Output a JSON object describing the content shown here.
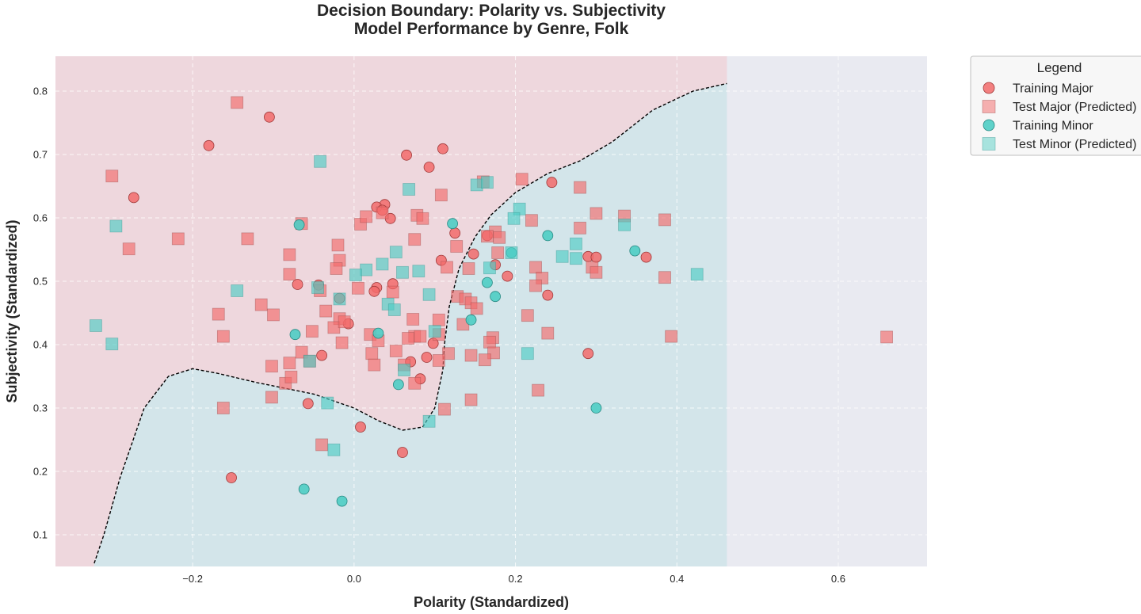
{
  "chart_data": {
    "type": "scatter",
    "title": "Decision Boundary: Polarity vs. Subjectivity",
    "subtitle": "Model Performance by Genre, Folk",
    "xlabel": "Polarity (Standardized)",
    "ylabel": "Subjectivity (Standardized)",
    "xlim": [
      -0.37,
      0.71
    ],
    "ylim": [
      0.05,
      0.855
    ],
    "xticks": [
      -0.2,
      0.0,
      0.2,
      0.4,
      0.6
    ],
    "xtick_labels": [
      "−0.2",
      "0.0",
      "0.2",
      "0.4",
      "0.6"
    ],
    "yticks": [
      0.1,
      0.2,
      0.3,
      0.4,
      0.5,
      0.6,
      0.7,
      0.8
    ],
    "ytick_labels": [
      "0.1",
      "0.2",
      "0.3",
      "0.4",
      "0.5",
      "0.6",
      "0.7",
      "0.8"
    ],
    "grid": true,
    "legend": {
      "title": "Legend",
      "placement": "outside upper right",
      "items": [
        {
          "label": "Training Major",
          "marker": "circle",
          "color": "#f26b6b"
        },
        {
          "label": "Test Major (Predicted)",
          "marker": "square",
          "color": "#f58888"
        },
        {
          "label": "Training Minor",
          "marker": "circle",
          "color": "#4ecdc4"
        },
        {
          "label": "Test Minor (Predicted)",
          "marker": "square",
          "color": "#7dd8d1"
        }
      ]
    },
    "colors": {
      "major_region": "#eed7dd",
      "minor_region": "#d3e5ea",
      "background": "#e9eaf1",
      "boundary": "#000000",
      "major": "#f26b6b",
      "minor": "#4ecdc4"
    },
    "region_x_max": 0.462,
    "decision_boundary": [
      [
        -0.322,
        0.055
      ],
      [
        -0.31,
        0.1
      ],
      [
        -0.29,
        0.19
      ],
      [
        -0.26,
        0.3
      ],
      [
        -0.23,
        0.35
      ],
      [
        -0.2,
        0.362
      ],
      [
        -0.17,
        0.355
      ],
      [
        -0.12,
        0.34
      ],
      [
        -0.05,
        0.322
      ],
      [
        0.0,
        0.3
      ],
      [
        0.03,
        0.28
      ],
      [
        0.06,
        0.265
      ],
      [
        0.085,
        0.27
      ],
      [
        0.1,
        0.3
      ],
      [
        0.11,
        0.36
      ],
      [
        0.112,
        0.4
      ],
      [
        0.118,
        0.46
      ],
      [
        0.13,
        0.52
      ],
      [
        0.15,
        0.57
      ],
      [
        0.17,
        0.605
      ],
      [
        0.2,
        0.64
      ],
      [
        0.24,
        0.67
      ],
      [
        0.28,
        0.69
      ],
      [
        0.32,
        0.72
      ],
      [
        0.37,
        0.77
      ],
      [
        0.42,
        0.8
      ],
      [
        0.462,
        0.812
      ]
    ],
    "series": [
      {
        "name": "Training Major",
        "marker": "circle",
        "points": [
          [
            -0.105,
            0.759
          ],
          [
            -0.18,
            0.714
          ],
          [
            -0.273,
            0.632
          ],
          [
            0.065,
            0.699
          ],
          [
            0.11,
            0.709
          ],
          [
            0.093,
            0.68
          ],
          [
            0.245,
            0.656
          ],
          [
            0.038,
            0.621
          ],
          [
            0.028,
            0.617
          ],
          [
            0.045,
            0.599
          ],
          [
            0.035,
            0.612
          ],
          [
            0.125,
            0.576
          ],
          [
            0.148,
            0.543
          ],
          [
            0.108,
            0.533
          ],
          [
            0.175,
            0.526
          ],
          [
            0.29,
            0.539
          ],
          [
            0.362,
            0.538
          ],
          [
            0.19,
            0.508
          ],
          [
            -0.07,
            0.495
          ],
          [
            -0.044,
            0.494
          ],
          [
            0.048,
            0.496
          ],
          [
            0.028,
            0.49
          ],
          [
            0.025,
            0.484
          ],
          [
            0.24,
            0.478
          ],
          [
            -0.018,
            0.473
          ],
          [
            -0.007,
            0.433
          ],
          [
            0.098,
            0.402
          ],
          [
            -0.04,
            0.383
          ],
          [
            0.07,
            0.373
          ],
          [
            0.09,
            0.38
          ],
          [
            0.29,
            0.386
          ],
          [
            -0.057,
            0.307
          ],
          [
            0.082,
            0.346
          ],
          [
            0.008,
            0.27
          ],
          [
            0.06,
            0.23
          ],
          [
            -0.152,
            0.19
          ],
          [
            0.165,
            0.572
          ],
          [
            0.3,
            0.538
          ]
        ]
      },
      {
        "name": "Test Major (Predicted)",
        "marker": "square",
        "points": [
          [
            -0.145,
            0.782
          ],
          [
            -0.3,
            0.666
          ],
          [
            -0.279,
            0.551
          ],
          [
            -0.218,
            0.567
          ],
          [
            -0.132,
            0.567
          ],
          [
            -0.065,
            0.591
          ],
          [
            0.008,
            0.59
          ],
          [
            0.015,
            0.602
          ],
          [
            0.035,
            0.608
          ],
          [
            0.078,
            0.604
          ],
          [
            0.085,
            0.599
          ],
          [
            0.108,
            0.636
          ],
          [
            0.16,
            0.657
          ],
          [
            0.208,
            0.661
          ],
          [
            0.28,
            0.648
          ],
          [
            0.3,
            0.607
          ],
          [
            0.335,
            0.603
          ],
          [
            0.385,
            0.597
          ],
          [
            0.22,
            0.596
          ],
          [
            0.175,
            0.578
          ],
          [
            0.18,
            0.569
          ],
          [
            0.165,
            0.571
          ],
          [
            0.075,
            0.566
          ],
          [
            0.127,
            0.555
          ],
          [
            0.28,
            0.584
          ],
          [
            -0.08,
            0.542
          ],
          [
            -0.02,
            0.557
          ],
          [
            -0.018,
            0.533
          ],
          [
            -0.022,
            0.52
          ],
          [
            -0.08,
            0.511
          ],
          [
            0.005,
            0.489
          ],
          [
            0.048,
            0.483
          ],
          [
            0.115,
            0.522
          ],
          [
            0.142,
            0.52
          ],
          [
            0.178,
            0.545
          ],
          [
            0.225,
            0.522
          ],
          [
            0.233,
            0.505
          ],
          [
            0.295,
            0.522
          ],
          [
            0.3,
            0.514
          ],
          [
            0.225,
            0.493
          ],
          [
            0.385,
            0.506
          ],
          [
            -0.115,
            0.463
          ],
          [
            -0.168,
            0.448
          ],
          [
            -0.1,
            0.447
          ],
          [
            -0.042,
            0.485
          ],
          [
            -0.035,
            0.453
          ],
          [
            -0.018,
            0.441
          ],
          [
            -0.025,
            0.427
          ],
          [
            -0.012,
            0.436
          ],
          [
            0.128,
            0.476
          ],
          [
            0.138,
            0.472
          ],
          [
            0.145,
            0.466
          ],
          [
            0.152,
            0.457
          ],
          [
            0.215,
            0.446
          ],
          [
            0.105,
            0.439
          ],
          [
            0.073,
            0.44
          ],
          [
            0.135,
            0.432
          ],
          [
            0.075,
            0.413
          ],
          [
            0.067,
            0.41
          ],
          [
            0.082,
            0.413
          ],
          [
            0.105,
            0.416
          ],
          [
            0.02,
            0.416
          ],
          [
            0.03,
            0.406
          ],
          [
            -0.015,
            0.403
          ],
          [
            -0.065,
            0.388
          ],
          [
            -0.052,
            0.421
          ],
          [
            -0.162,
            0.413
          ],
          [
            0.24,
            0.418
          ],
          [
            0.393,
            0.413
          ],
          [
            0.172,
            0.411
          ],
          [
            0.168,
            0.404
          ],
          [
            0.173,
            0.387
          ],
          [
            0.117,
            0.386
          ],
          [
            0.145,
            0.383
          ],
          [
            0.162,
            0.376
          ],
          [
            0.022,
            0.386
          ],
          [
            0.052,
            0.39
          ],
          [
            0.062,
            0.368
          ],
          [
            0.105,
            0.375
          ],
          [
            0.025,
            0.368
          ],
          [
            -0.102,
            0.366
          ],
          [
            -0.08,
            0.371
          ],
          [
            -0.085,
            0.339
          ],
          [
            -0.078,
            0.349
          ],
          [
            -0.055,
            0.374
          ],
          [
            0.075,
            0.339
          ],
          [
            -0.102,
            0.317
          ],
          [
            -0.162,
            0.3
          ],
          [
            0.112,
            0.298
          ],
          [
            0.145,
            0.313
          ],
          [
            0.228,
            0.328
          ],
          [
            -0.04,
            0.242
          ],
          [
            0.66,
            0.412
          ]
        ]
      },
      {
        "name": "Training Minor",
        "marker": "circle",
        "points": [
          [
            -0.068,
            0.589
          ],
          [
            0.122,
            0.591
          ],
          [
            0.24,
            0.572
          ],
          [
            0.195,
            0.545
          ],
          [
            0.348,
            0.548
          ],
          [
            0.165,
            0.498
          ],
          [
            0.175,
            0.476
          ],
          [
            0.145,
            0.439
          ],
          [
            -0.073,
            0.416
          ],
          [
            0.03,
            0.418
          ],
          [
            0.055,
            0.337
          ],
          [
            0.3,
            0.3
          ],
          [
            -0.062,
            0.172
          ],
          [
            -0.015,
            0.153
          ]
        ]
      },
      {
        "name": "Test Minor (Predicted)",
        "marker": "square",
        "points": [
          [
            -0.042,
            0.689
          ],
          [
            0.068,
            0.645
          ],
          [
            0.152,
            0.652
          ],
          [
            0.165,
            0.656
          ],
          [
            0.205,
            0.614
          ],
          [
            0.198,
            0.599
          ],
          [
            0.335,
            0.589
          ],
          [
            0.275,
            0.559
          ],
          [
            0.275,
            0.536
          ],
          [
            0.258,
            0.539
          ],
          [
            0.168,
            0.521
          ],
          [
            0.195,
            0.545
          ],
          [
            0.425,
            0.511
          ],
          [
            -0.295,
            0.587
          ],
          [
            0.052,
            0.546
          ],
          [
            0.035,
            0.527
          ],
          [
            0.015,
            0.518
          ],
          [
            0.002,
            0.51
          ],
          [
            0.06,
            0.514
          ],
          [
            0.08,
            0.516
          ],
          [
            -0.145,
            0.485
          ],
          [
            -0.045,
            0.49
          ],
          [
            -0.018,
            0.472
          ],
          [
            0.042,
            0.464
          ],
          [
            0.05,
            0.455
          ],
          [
            0.093,
            0.479
          ],
          [
            0.1,
            0.421
          ],
          [
            -0.32,
            0.43
          ],
          [
            -0.3,
            0.401
          ],
          [
            -0.055,
            0.374
          ],
          [
            0.062,
            0.36
          ],
          [
            0.215,
            0.386
          ],
          [
            -0.033,
            0.308
          ],
          [
            0.093,
            0.279
          ],
          [
            -0.025,
            0.234
          ]
        ]
      }
    ]
  }
}
